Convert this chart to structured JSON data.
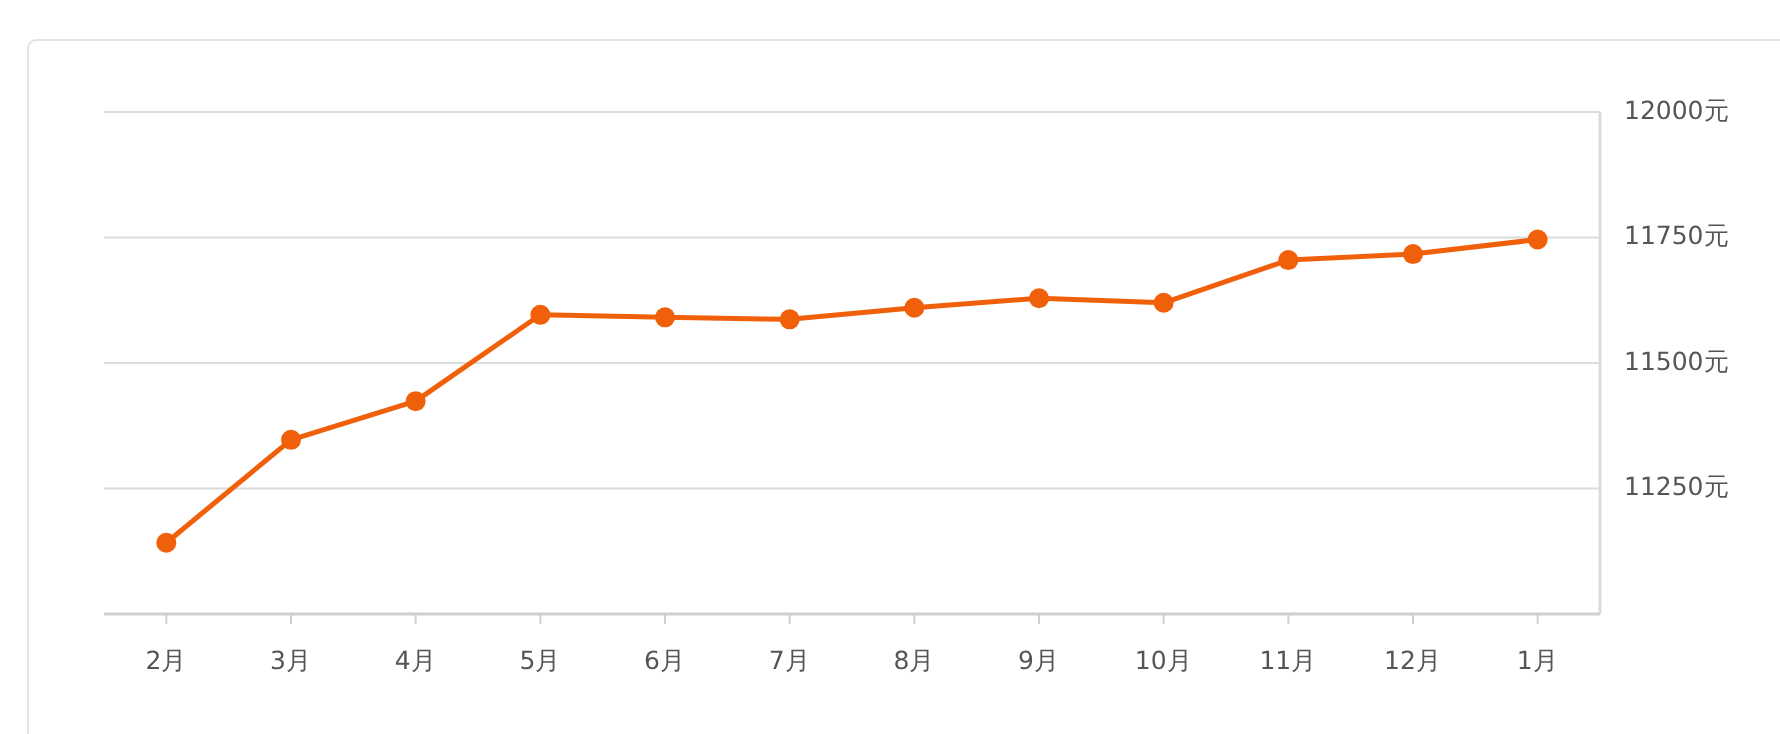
{
  "chart_data": {
    "type": "line",
    "categories": [
      "2月",
      "3月",
      "4月",
      "5月",
      "6月",
      "7月",
      "8月",
      "9月",
      "10月",
      "11月",
      "12月",
      "1月"
    ],
    "series": [
      {
        "color": "#f0600a",
        "values": [
          11142,
          11347,
          11424,
          11596,
          11591,
          11587,
          11610,
          11629,
          11620,
          11705,
          11717,
          11746
        ]
      }
    ],
    "ylim": [
      11000,
      12000
    ],
    "yticks": [
      {
        "value": 11250,
        "label": "11250元"
      },
      {
        "value": 11500,
        "label": "11500元"
      },
      {
        "value": 11750,
        "label": "11750元"
      },
      {
        "value": 12000,
        "label": "12000元"
      }
    ],
    "grid": "y",
    "marker": "circle",
    "line_style": "solid"
  }
}
